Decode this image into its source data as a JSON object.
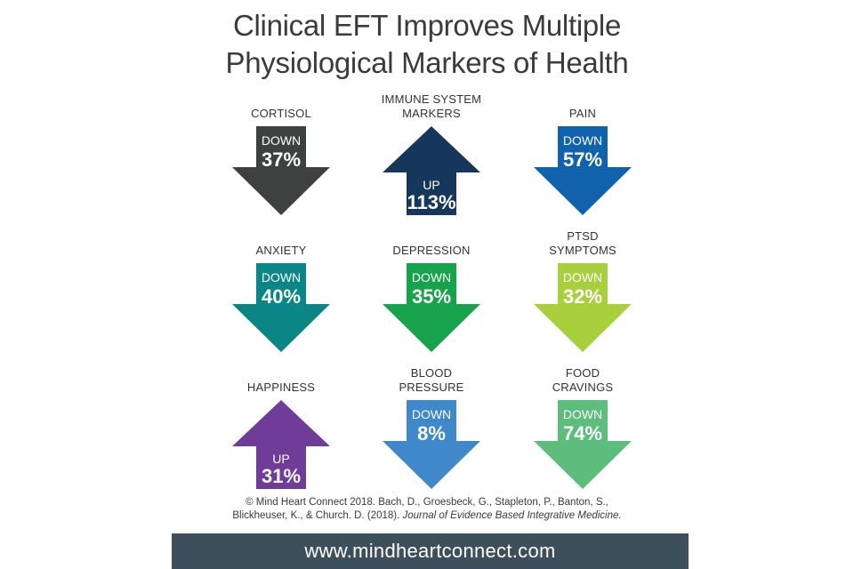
{
  "title": {
    "line1": "Clinical EFT Improves Multiple",
    "line2": "Physiological Markers of Health"
  },
  "markers": [
    {
      "label_lines": [
        "CORTISOL"
      ],
      "direction": "DOWN",
      "percent": "37%",
      "color": "#3f4040"
    },
    {
      "label_lines": [
        "IMMUNE SYSTEM",
        "MARKERS"
      ],
      "direction": "UP",
      "percent": "113%",
      "color": "#16365c"
    },
    {
      "label_lines": [
        "PAIN"
      ],
      "direction": "DOWN",
      "percent": "57%",
      "color": "#0f62ab"
    },
    {
      "label_lines": [
        "ANXIETY"
      ],
      "direction": "DOWN",
      "percent": "40%",
      "color": "#0b8686"
    },
    {
      "label_lines": [
        "DEPRESSION"
      ],
      "direction": "DOWN",
      "percent": "35%",
      "color": "#16a34c"
    },
    {
      "label_lines": [
        "PTSD",
        "SYMPTOMS"
      ],
      "direction": "DOWN",
      "percent": "32%",
      "color": "#a8cf3c"
    },
    {
      "label_lines": [
        "HAPPINESS"
      ],
      "direction": "UP",
      "percent": "31%",
      "color": "#6f3c97"
    },
    {
      "label_lines": [
        "BLOOD",
        "PRESSURE"
      ],
      "direction": "DOWN",
      "percent": "8%",
      "color": "#3f88c9"
    },
    {
      "label_lines": [
        "FOOD",
        "CRAVINGS"
      ],
      "direction": "DOWN",
      "percent": "74%",
      "color": "#5dbd7d"
    }
  ],
  "citation": {
    "line1": "© Mind Heart Connect 2018. Bach, D., Groesbeck, G., Stapleton, P., Banton, S.,",
    "line2_prefix": "Blickheuser, K., & Church. D. (2018). ",
    "journal": "Journal of Evidence Based Integrative Medicine.",
    "line2_suffix": ""
  },
  "footer": {
    "url": "www.mindheartconnect.com",
    "color": "#3e4f5c"
  }
}
